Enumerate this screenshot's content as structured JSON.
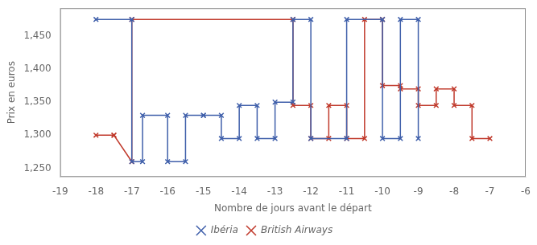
{
  "chart_data": {
    "type": "line",
    "xlabel": "Nombre de jours avant le départ",
    "ylabel": "Prix en euros",
    "series": [
      {
        "name": "Ibéria",
        "color": "#3f5faa",
        "marker": "x",
        "x": [
          -18,
          -17,
          -17,
          -16.7,
          -16.7,
          -16,
          -16,
          -15.5,
          -15.5,
          -15,
          -15,
          -14.5,
          -14.5,
          -14,
          -14,
          -13.5,
          -13.5,
          -13,
          -13,
          -12.5,
          -12.5,
          -12,
          -12,
          -11,
          -11,
          -10,
          -10,
          -9.5,
          -9.5,
          -9,
          -9
        ],
        "values": [
          1475,
          1475,
          1260,
          1260,
          1330,
          1330,
          1260,
          1260,
          1330,
          1330,
          1330,
          1330,
          1295,
          1295,
          1345,
          1345,
          1295,
          1295,
          1350,
          1350,
          1475,
          1475,
          1295,
          1295,
          1475,
          1475,
          1295,
          1295,
          1475,
          1475,
          1295
        ]
      },
      {
        "name": "British Airways",
        "color": "#c0392b",
        "marker": "x",
        "x": [
          -18,
          -17.5,
          -17.5,
          -17,
          -17,
          -12.5,
          -12.5,
          -12,
          -12,
          -11.5,
          -11.5,
          -11,
          -11,
          -10.5,
          -10.5,
          -10,
          -10,
          -9.5,
          -9.5,
          -9,
          -9,
          -8.5,
          -8.5,
          -8,
          -8,
          -7.5,
          -7.5,
          -7
        ],
        "values": [
          1300,
          1300,
          1300,
          1260,
          1475,
          1475,
          1345,
          1345,
          1295,
          1295,
          1345,
          1345,
          1295,
          1295,
          1475,
          1475,
          1375,
          1375,
          1370,
          1370,
          1345,
          1345,
          1370,
          1370,
          1345,
          1345,
          1295,
          1295
        ]
      }
    ],
    "xlim": [
      -19,
      -6
    ],
    "ylim": [
      1237,
      1492
    ],
    "xticks": [
      -19,
      -18,
      -17,
      -16,
      -15,
      -14,
      -13,
      -12,
      -11,
      -10,
      -9,
      -8,
      -7,
      -6
    ],
    "yticks": [
      {
        "value": 1250,
        "label": "1,250"
      },
      {
        "value": 1300,
        "label": "1,300"
      },
      {
        "value": 1350,
        "label": "1,350"
      },
      {
        "value": 1400,
        "label": "1,400"
      },
      {
        "value": 1450,
        "label": "1,450"
      }
    ],
    "grid": false,
    "legend": "bottom"
  }
}
